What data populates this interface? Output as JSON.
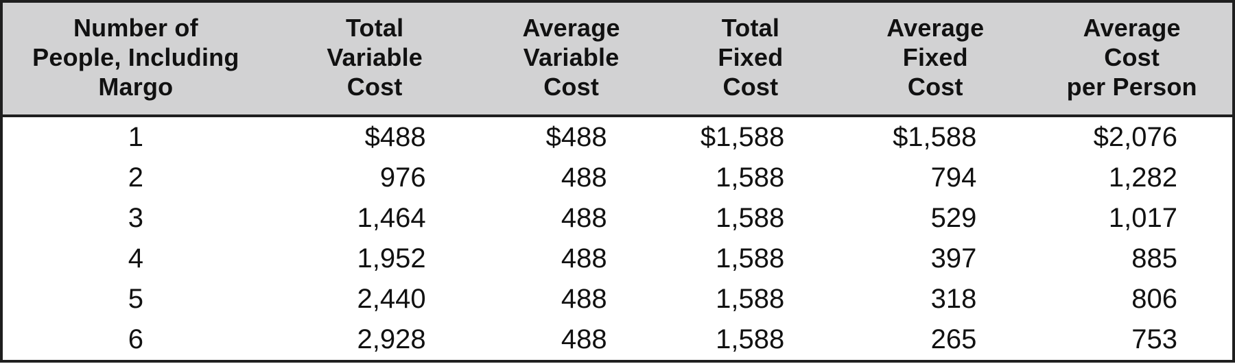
{
  "table": {
    "columns": [
      {
        "id": "people",
        "label": "Number of\nPeople, Including\nMargo",
        "align": "center"
      },
      {
        "id": "total_variable_cost",
        "label": "Total\nVariable\nCost",
        "align": "right"
      },
      {
        "id": "average_variable_cost",
        "label": "Average\nVariable\nCost",
        "align": "right"
      },
      {
        "id": "total_fixed_cost",
        "label": "Total\nFixed\nCost",
        "align": "right"
      },
      {
        "id": "average_fixed_cost",
        "label": "Average\nFixed\nCost",
        "align": "right"
      },
      {
        "id": "average_cost_per_person",
        "label": "Average\nCost\nper Person",
        "align": "right"
      }
    ],
    "column_widths_pct": [
      21.7,
      17.2,
      14.7,
      14.4,
      15.6,
      16.4
    ],
    "rows": [
      [
        "1",
        "$488",
        "$488",
        "$1,588",
        "$1,588",
        "$2,076"
      ],
      [
        "2",
        "976",
        "488",
        "1,588",
        "794",
        "1,282"
      ],
      [
        "3",
        "1,464",
        "488",
        "1,588",
        "529",
        "1,017"
      ],
      [
        "4",
        "1,952",
        "488",
        "1,588",
        "397",
        "885"
      ],
      [
        "5",
        "2,440",
        "488",
        "1,588",
        "318",
        "806"
      ],
      [
        "6",
        "2,928",
        "488",
        "1,588",
        "265",
        "753"
      ]
    ]
  },
  "colors": {
    "header_bg": "#d2d2d3",
    "border": "#1f1f1f",
    "text": "#111111",
    "body_bg": "#ffffff"
  }
}
